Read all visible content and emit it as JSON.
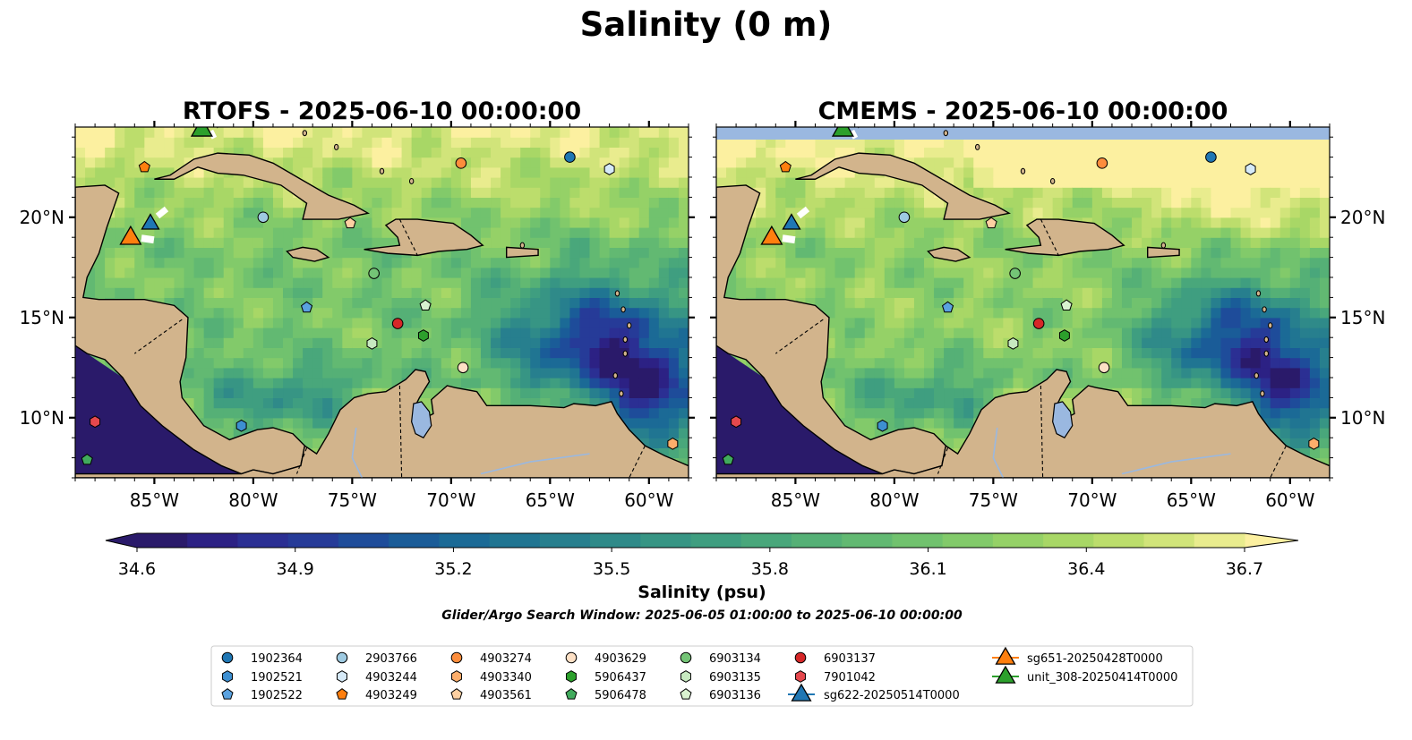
{
  "figure": {
    "suptitle": "Salinity (0 m)",
    "colorbar": {
      "label": "Salinity (psu)",
      "ticks": [
        "34.6",
        "34.9",
        "35.2",
        "35.5",
        "35.8",
        "36.1",
        "36.4",
        "36.7"
      ],
      "min": 34.6,
      "max": 36.7,
      "levels": 22,
      "extend": "both",
      "colors": [
        "#2a1a6a",
        "#2c2184",
        "#2b2f93",
        "#263b98",
        "#1e4c9a",
        "#1a5c98",
        "#1b6a96",
        "#207592",
        "#277f8e",
        "#2f8a89",
        "#379584",
        "#3f9e80",
        "#49a77b",
        "#55b076",
        "#62b972",
        "#71c26e",
        "#82ca6a",
        "#95d167",
        "#a8d766",
        "#bcdd6c",
        "#d1e47a",
        "#e9ec8e"
      ],
      "under_color": "#2a1a6a",
      "over_color": "#fcf0a0"
    },
    "note": "Glider/Argo Search Window: 2025-06-05 01:00:00 to 2025-06-10 00:00:00"
  },
  "chart_data": [
    {
      "type": "heatmap",
      "title": "RTOFS - 2025-06-10 00:00:00",
      "xlim": [
        -89,
        -58
      ],
      "ylim": [
        7,
        24.5
      ],
      "xticks": [
        "85°W",
        "80°W",
        "75°W",
        "70°W",
        "65°W",
        "60°W"
      ],
      "yticks": [
        "20°N",
        "15°N",
        "10°N"
      ],
      "ytick_side": "left",
      "no_data_band": false
    },
    {
      "type": "heatmap",
      "title": "CMEMS - 2025-06-10 00:00:00",
      "xlim": [
        -89,
        -58
      ],
      "ylim": [
        7,
        24.5
      ],
      "xticks": [
        "85°W",
        "80°W",
        "75°W",
        "70°W",
        "65°W",
        "60°W"
      ],
      "yticks": [
        "20°N",
        "15°N",
        "10°N"
      ],
      "ytick_side": "right",
      "no_data_band": true
    }
  ],
  "observations": [
    {
      "id": "1902364",
      "marker": "circle",
      "color": "#1f77b4",
      "lon": -64.0,
      "lat": 23.0
    },
    {
      "id": "1902521",
      "marker": "hexagon",
      "color": "#3d8fd1",
      "lon": -80.6,
      "lat": 9.6
    },
    {
      "id": "1902522",
      "marker": "pentagon",
      "color": "#5aa2e0",
      "lon": -77.3,
      "lat": 15.5
    },
    {
      "id": "2903766",
      "marker": "circle",
      "color": "#9ecae1",
      "lon": -79.5,
      "lat": 20.0
    },
    {
      "id": "4903244",
      "marker": "hexagon",
      "color": "#d6eaf8",
      "lon": -62.0,
      "lat": 22.4
    },
    {
      "id": "4903249",
      "marker": "pentagon",
      "color": "#ff7f0e",
      "lon": -85.5,
      "lat": 22.5
    },
    {
      "id": "4903274",
      "marker": "circle",
      "color": "#fd8d3c",
      "lon": -69.5,
      "lat": 22.7
    },
    {
      "id": "4903340",
      "marker": "hexagon",
      "color": "#fdae6b",
      "lon": -58.8,
      "lat": 8.7
    },
    {
      "id": "4903561",
      "marker": "pentagon",
      "color": "#fdd0a2",
      "lon": -75.1,
      "lat": 19.7
    },
    {
      "id": "4903629",
      "marker": "circle",
      "color": "#fde0c5",
      "lon": -69.4,
      "lat": 12.5
    },
    {
      "id": "5906437",
      "marker": "hexagon",
      "color": "#2ca02c",
      "lon": -71.4,
      "lat": 14.1
    },
    {
      "id": "5906478",
      "marker": "pentagon",
      "color": "#41ab5d",
      "lon": -88.4,
      "lat": 7.9
    },
    {
      "id": "6903134",
      "marker": "circle",
      "color": "#74c476",
      "lon": -73.9,
      "lat": 17.2
    },
    {
      "id": "6903135",
      "marker": "hexagon",
      "color": "#c7e9c0",
      "lon": -74.0,
      "lat": 13.7
    },
    {
      "id": "6903136",
      "marker": "pentagon",
      "color": "#d9f2d0",
      "lon": -71.3,
      "lat": 15.6
    },
    {
      "id": "6903137",
      "marker": "circle",
      "color": "#d62728",
      "lon": -72.7,
      "lat": 14.7
    },
    {
      "id": "7901042",
      "marker": "hexagon",
      "color": "#e5484d",
      "lon": -88.0,
      "lat": 9.8
    }
  ],
  "gliders": [
    {
      "id": "sg622-20250514T0000",
      "color": "#1f77b4",
      "lon": -85.2,
      "lat": 19.7
    },
    {
      "id": "sg651-20250428T0000",
      "color": "#ff7f0e",
      "lon": -86.2,
      "lat": 19.0
    },
    {
      "id": "unit_308-20250414T0000",
      "color": "#2ca02c",
      "lon": -82.6,
      "lat": 24.4
    }
  ]
}
